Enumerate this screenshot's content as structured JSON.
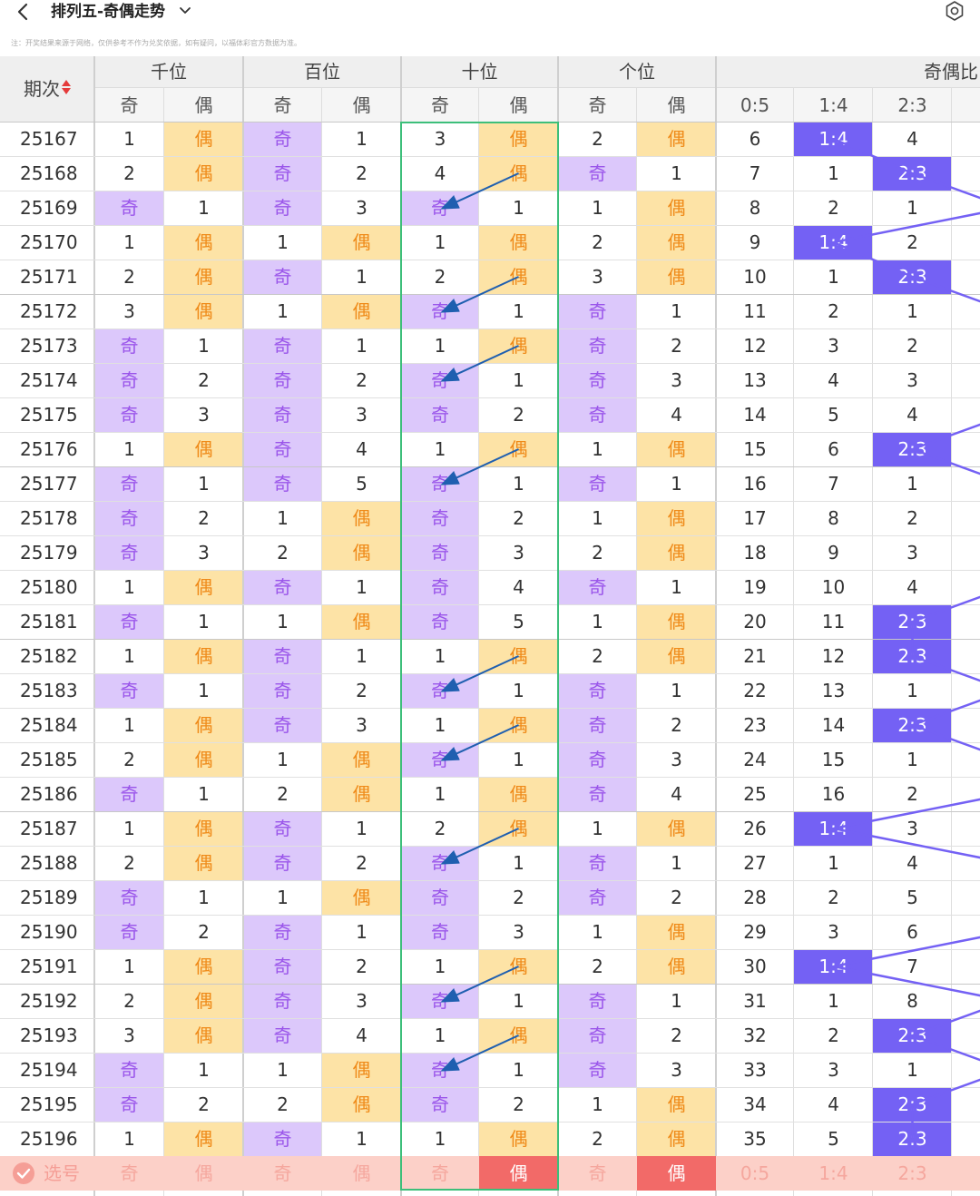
{
  "header": {
    "title": "排列五-奇偶走势",
    "notice": "注：开奖结果来源于网络，仅供参考不作为兑奖依据，如有疑问，以福体彩官方数据为准。"
  },
  "table": {
    "issue_header": "期次",
    "positions": [
      "千位",
      "百位",
      "十位",
      "个位"
    ],
    "ratio_group": "奇偶比",
    "odd_label": "奇",
    "even_label": "偶",
    "ratio_labels": [
      "0:5",
      "1:4",
      "2:3"
    ],
    "rows": [
      {
        "issue": "25167",
        "cells": [
          "1",
          "偶",
          "奇",
          "1",
          "3",
          "偶",
          "2",
          "偶",
          "6",
          "1:4",
          "4"
        ]
      },
      {
        "issue": "25168",
        "cells": [
          "2",
          "偶",
          "奇",
          "2",
          "4",
          "偶",
          "奇",
          "1",
          "7",
          "1",
          "2:3"
        ]
      },
      {
        "issue": "25169",
        "cells": [
          "奇",
          "1",
          "奇",
          "3",
          "奇",
          "1",
          "1",
          "偶",
          "8",
          "2",
          "1"
        ]
      },
      {
        "issue": "25170",
        "cells": [
          "1",
          "偶",
          "1",
          "偶",
          "1",
          "偶",
          "2",
          "偶",
          "9",
          "1:4",
          "2"
        ]
      },
      {
        "issue": "25171",
        "cells": [
          "2",
          "偶",
          "奇",
          "1",
          "2",
          "偶",
          "3",
          "偶",
          "10",
          "1",
          "2:3"
        ]
      },
      {
        "issue": "25172",
        "cells": [
          "3",
          "偶",
          "1",
          "偶",
          "奇",
          "1",
          "奇",
          "1",
          "11",
          "2",
          "1"
        ]
      },
      {
        "issue": "25173",
        "cells": [
          "奇",
          "1",
          "奇",
          "1",
          "1",
          "偶",
          "奇",
          "2",
          "12",
          "3",
          "2"
        ]
      },
      {
        "issue": "25174",
        "cells": [
          "奇",
          "2",
          "奇",
          "2",
          "奇",
          "1",
          "奇",
          "3",
          "13",
          "4",
          "3"
        ]
      },
      {
        "issue": "25175",
        "cells": [
          "奇",
          "3",
          "奇",
          "3",
          "奇",
          "2",
          "奇",
          "4",
          "14",
          "5",
          "4"
        ]
      },
      {
        "issue": "25176",
        "cells": [
          "1",
          "偶",
          "奇",
          "4",
          "1",
          "偶",
          "1",
          "偶",
          "15",
          "6",
          "2:3"
        ]
      },
      {
        "issue": "25177",
        "cells": [
          "奇",
          "1",
          "奇",
          "5",
          "奇",
          "1",
          "奇",
          "1",
          "16",
          "7",
          "1"
        ]
      },
      {
        "issue": "25178",
        "cells": [
          "奇",
          "2",
          "1",
          "偶",
          "奇",
          "2",
          "1",
          "偶",
          "17",
          "8",
          "2"
        ]
      },
      {
        "issue": "25179",
        "cells": [
          "奇",
          "3",
          "2",
          "偶",
          "奇",
          "3",
          "2",
          "偶",
          "18",
          "9",
          "3"
        ]
      },
      {
        "issue": "25180",
        "cells": [
          "1",
          "偶",
          "奇",
          "1",
          "奇",
          "4",
          "奇",
          "1",
          "19",
          "10",
          "4"
        ]
      },
      {
        "issue": "25181",
        "cells": [
          "奇",
          "1",
          "1",
          "偶",
          "奇",
          "5",
          "1",
          "偶",
          "20",
          "11",
          "2:3"
        ]
      },
      {
        "issue": "25182",
        "cells": [
          "1",
          "偶",
          "奇",
          "1",
          "1",
          "偶",
          "2",
          "偶",
          "21",
          "12",
          "2:3"
        ]
      },
      {
        "issue": "25183",
        "cells": [
          "奇",
          "1",
          "奇",
          "2",
          "奇",
          "1",
          "奇",
          "1",
          "22",
          "13",
          "1"
        ]
      },
      {
        "issue": "25184",
        "cells": [
          "1",
          "偶",
          "奇",
          "3",
          "1",
          "偶",
          "奇",
          "2",
          "23",
          "14",
          "2:3"
        ]
      },
      {
        "issue": "25185",
        "cells": [
          "2",
          "偶",
          "1",
          "偶",
          "奇",
          "1",
          "奇",
          "3",
          "24",
          "15",
          "1"
        ]
      },
      {
        "issue": "25186",
        "cells": [
          "奇",
          "1",
          "2",
          "偶",
          "1",
          "偶",
          "奇",
          "4",
          "25",
          "16",
          "2"
        ]
      },
      {
        "issue": "25187",
        "cells": [
          "1",
          "偶",
          "奇",
          "1",
          "2",
          "偶",
          "1",
          "偶",
          "26",
          "1:4",
          "3"
        ]
      },
      {
        "issue": "25188",
        "cells": [
          "2",
          "偶",
          "奇",
          "2",
          "奇",
          "1",
          "奇",
          "1",
          "27",
          "1",
          "4"
        ]
      },
      {
        "issue": "25189",
        "cells": [
          "奇",
          "1",
          "1",
          "偶",
          "奇",
          "2",
          "奇",
          "2",
          "28",
          "2",
          "5"
        ]
      },
      {
        "issue": "25190",
        "cells": [
          "奇",
          "2",
          "奇",
          "1",
          "奇",
          "3",
          "1",
          "偶",
          "29",
          "3",
          "6"
        ]
      },
      {
        "issue": "25191",
        "cells": [
          "1",
          "偶",
          "奇",
          "2",
          "1",
          "偶",
          "2",
          "偶",
          "30",
          "1:4",
          "7"
        ]
      },
      {
        "issue": "25192",
        "cells": [
          "2",
          "偶",
          "奇",
          "3",
          "奇",
          "1",
          "奇",
          "1",
          "31",
          "1",
          "8"
        ]
      },
      {
        "issue": "25193",
        "cells": [
          "3",
          "偶",
          "奇",
          "4",
          "1",
          "偶",
          "奇",
          "2",
          "32",
          "2",
          "2:3"
        ]
      },
      {
        "issue": "25194",
        "cells": [
          "奇",
          "1",
          "1",
          "偶",
          "奇",
          "1",
          "奇",
          "3",
          "33",
          "3",
          "1"
        ]
      },
      {
        "issue": "25195",
        "cells": [
          "奇",
          "2",
          "2",
          "偶",
          "奇",
          "2",
          "1",
          "偶",
          "34",
          "4",
          "2:3"
        ]
      },
      {
        "issue": "25196",
        "cells": [
          "1",
          "偶",
          "奇",
          "1",
          "1",
          "偶",
          "2",
          "偶",
          "35",
          "5",
          "2:3"
        ]
      }
    ],
    "pick_row": {
      "label": "选号",
      "cells": [
        "奇",
        "偶",
        "奇",
        "偶",
        "奇",
        "偶",
        "奇",
        "偶",
        "0:5",
        "1:4",
        "2:3"
      ],
      "selected": [
        5,
        7
      ]
    }
  },
  "colors": {
    "odd_highlight": "#dcc8fb",
    "even_highlight": "#fde3a6",
    "ratio_highlight": "#7461f4",
    "pick_row": "#fcd0c8",
    "pick_selected": "#f26a68",
    "trend_arrow": "#1f5fb0",
    "ten_frame": "#3dbf7a"
  },
  "icons": {
    "back": "back-chevron-icon",
    "dropdown": "chevron-down-icon",
    "settings": "settings-icon",
    "sort": "sort-icon",
    "check": "check-circle-icon"
  }
}
